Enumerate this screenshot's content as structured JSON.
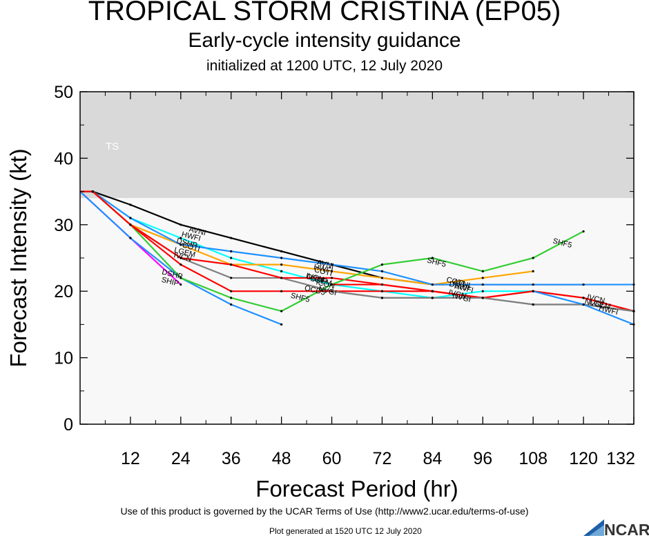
{
  "header": {
    "title": "TROPICAL STORM CRISTINA (EP05)",
    "subtitle": "Early-cycle intensity guidance",
    "initialized": "initialized at 1200 UTC, 12 July 2020"
  },
  "footer": {
    "terms": "Use of this product is governed by the UCAR Terms of Use (http://www2.ucar.edu/terms-of-use)",
    "generated": "Plot generated at 1520 UTC   12 July 2020",
    "logo_text": "NCAR"
  },
  "chart_data": {
    "type": "line",
    "xlabel": "Forecast Period (hr)",
    "ylabel": "Forecast Intensity (kt)",
    "xlim": [
      0,
      132
    ],
    "ylim": [
      0,
      50
    ],
    "xticks": [
      12,
      24,
      36,
      48,
      60,
      72,
      84,
      96,
      108,
      120,
      132
    ],
    "yticks": [
      0,
      10,
      20,
      30,
      40,
      50
    ],
    "grid": false,
    "bands": [
      {
        "label": "TS",
        "from": 34,
        "to": 50,
        "color": "#d9d9d9"
      },
      {
        "label": "",
        "from": 0,
        "to": 34,
        "color": "#f8f8f8"
      }
    ],
    "series": [
      {
        "name": "AVNI",
        "color": "#000000",
        "x": [
          0,
          3,
          12,
          24,
          36,
          48,
          60,
          72,
          84,
          96,
          108,
          120
        ],
        "y": [
          35,
          35,
          33,
          30,
          28,
          26,
          24,
          22,
          21,
          21,
          21,
          21
        ],
        "labels": [
          {
            "text": "AVNI",
            "x": 28,
            "y": 29.1
          },
          {
            "text": "AVNI",
            "x": 58.5,
            "y": 24.1
          },
          {
            "text": "AVNI",
            "x": 91,
            "y": 21.2
          }
        ]
      },
      {
        "name": "HWFI",
        "color": "#00ffff",
        "x": [
          0,
          3,
          12,
          24,
          36,
          48,
          60,
          72,
          84,
          96,
          108
        ],
        "y": [
          35,
          35,
          31,
          28,
          25,
          23,
          21,
          20,
          19,
          20,
          20
        ],
        "labels": [
          {
            "text": "HWFI",
            "x": 26.5,
            "y": 28.3
          },
          {
            "text": "HWFI",
            "x": 58,
            "y": 23.4
          },
          {
            "text": "HWFI",
            "x": 91.5,
            "y": 20.5
          }
        ]
      },
      {
        "name": "COTI",
        "color": "#ffa500",
        "x": [
          0,
          3,
          12,
          24,
          36,
          48,
          60,
          72,
          84,
          96,
          108
        ],
        "y": [
          35,
          35,
          30,
          27,
          24,
          24,
          23,
          22,
          21,
          22,
          23
        ],
        "labels": [
          {
            "text": "COTI",
            "x": 26.5,
            "y": 26.7
          },
          {
            "text": "COTI",
            "x": 58,
            "y": 23
          },
          {
            "text": "COTI",
            "x": 89.5,
            "y": 21.5
          }
        ]
      },
      {
        "name": "DSHP",
        "color": "#1e90ff",
        "x": [
          0,
          3,
          12,
          24,
          36,
          48,
          60,
          72,
          84,
          96,
          108,
          120,
          132
        ],
        "y": [
          35,
          35,
          31,
          27,
          26,
          25,
          24,
          23,
          21,
          21,
          21,
          21,
          21
        ],
        "labels": [
          {
            "text": "DSHP",
            "x": 25.5,
            "y": 27.3
          },
          {
            "text": "DSHP",
            "x": 56.5,
            "y": 21.9
          },
          {
            "text": "DSHP",
            "x": 90.5,
            "y": 20.8
          }
        ]
      },
      {
        "name": "LGEM",
        "color": "#808080",
        "x": [
          0,
          3,
          12,
          24,
          36,
          48,
          60,
          72,
          84,
          96,
          108,
          120,
          132
        ],
        "y": [
          35,
          35,
          30,
          25,
          22,
          22,
          20,
          19,
          19,
          19,
          18,
          18,
          17
        ],
        "labels": [
          {
            "text": "LGEM",
            "x": 25,
            "y": 25.9
          },
          {
            "text": "LGEM",
            "x": 57.5,
            "y": 21.6
          },
          {
            "text": "LGEM",
            "x": 124,
            "y": 18.1
          }
        ]
      },
      {
        "name": "IVCN",
        "color": "#ff0000",
        "x": [
          0,
          3,
          12,
          24,
          36,
          48,
          60,
          72,
          84,
          96,
          108,
          120,
          132
        ],
        "y": [
          35,
          35,
          30,
          25,
          24,
          22,
          22,
          21,
          20,
          19,
          20,
          19,
          17
        ],
        "labels": [
          {
            "text": "IVCN",
            "x": 24.5,
            "y": 25.2
          },
          {
            "text": "IVCN",
            "x": 56,
            "y": 22.1
          },
          {
            "text": "IVCN",
            "x": 90,
            "y": 19.6
          },
          {
            "text": "IVCN",
            "x": 123,
            "y": 18.9
          }
        ]
      },
      {
        "name": "SHIP",
        "color": "#ff00ff",
        "x": [
          0,
          12,
          24
        ],
        "y": [
          35,
          28,
          21
        ],
        "labels": [
          {
            "text": "SHIP",
            "x": 21.5,
            "y": 21.5
          }
        ]
      },
      {
        "name": "DSHP",
        "color": "#1e90ff",
        "x": [
          0,
          12,
          24,
          36,
          48
        ],
        "y": [
          35,
          28,
          22,
          18,
          15
        ],
        "labels": [
          {
            "text": "DSHP",
            "x": 22,
            "y": 22.6
          }
        ]
      },
      {
        "name": "SHF5",
        "color": "#32cd32",
        "x": [
          0,
          3,
          12,
          24,
          36,
          48,
          60,
          72,
          84,
          96,
          108,
          120
        ],
        "y": [
          35,
          35,
          30,
          22,
          19,
          17,
          21,
          24,
          25,
          23,
          25,
          29
        ],
        "labels": [
          {
            "text": "SHF5",
            "x": 52.5,
            "y": 19.1
          },
          {
            "text": "SHF5",
            "x": 85,
            "y": 24.4
          },
          {
            "text": "SHF5",
            "x": 115,
            "y": 27.3
          }
        ]
      },
      {
        "name": "OCD5",
        "color": "#ff0000",
        "x": [
          0,
          3,
          12,
          24,
          36,
          48,
          60,
          72,
          84,
          96,
          108,
          120,
          132
        ],
        "y": [
          35,
          35,
          30,
          24,
          20,
          20,
          20,
          20,
          20,
          19,
          20,
          19,
          17
        ],
        "labels": [
          {
            "text": "OCD5",
            "x": 56,
            "y": 20.2
          }
        ]
      },
      {
        "name": "ICON",
        "color": "#ff0000",
        "x": [
          60,
          72,
          84,
          96
        ],
        "y": [
          21,
          21,
          20,
          19
        ],
        "labels": [
          {
            "text": "ICON",
            "x": 58.5,
            "y": 21.1
          }
        ]
      },
      {
        "name": "NVGI",
        "color": "#808080",
        "x": [
          60,
          72,
          84,
          96,
          108,
          120,
          132
        ],
        "y": [
          20,
          19,
          19,
          19,
          18,
          18,
          17
        ],
        "labels": [
          {
            "text": "NVGI",
            "x": 59,
            "y": 20.1
          },
          {
            "text": "NVGI",
            "x": 91,
            "y": 19.1
          },
          {
            "text": "NVGI",
            "x": 122.5,
            "y": 18.2
          }
        ]
      },
      {
        "name": "HWFI",
        "color": "#1e90ff",
        "x": [
          108,
          120,
          132
        ],
        "y": [
          20,
          18,
          15
        ],
        "labels": [
          {
            "text": "HWFI",
            "x": 126,
            "y": 17.2
          }
        ]
      }
    ]
  }
}
